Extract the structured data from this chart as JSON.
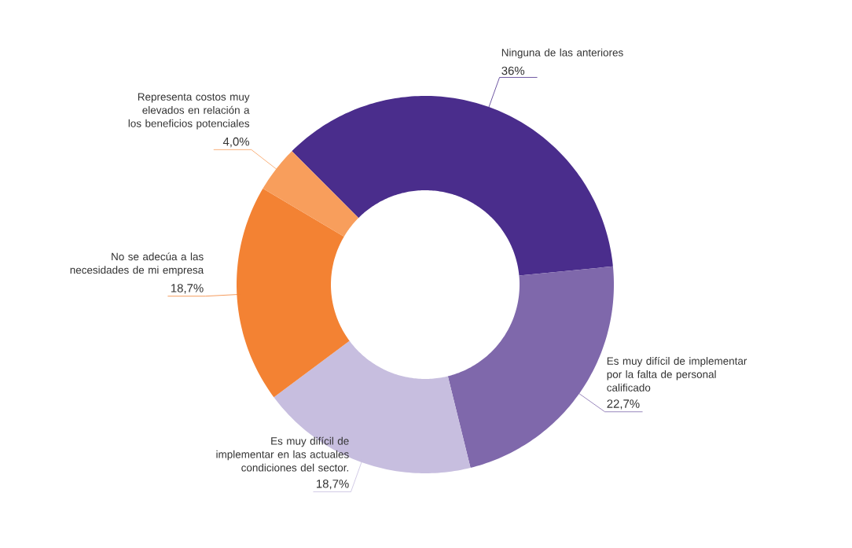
{
  "chart_data": {
    "type": "donut",
    "categories": [
      "Ninguna de las anteriores",
      "Es muy difícil de implementar por la falta de personal calificado",
      "Es muy difícil de implementar en las actuales condiciones del sector.",
      "No se adecúa a las necesidades de mi empresa",
      "Representa costos muy elevados en relación a los beneficios potenciales"
    ],
    "values": [
      36,
      22.7,
      18.7,
      18.7,
      4.0
    ],
    "value_labels": [
      "36%",
      "22,7%",
      "18,7%",
      "18,7%",
      "4,0%"
    ],
    "colors": [
      "#4a2d8c",
      "#7f68ab",
      "#c7bedf",
      "#f38233",
      "#f89e5c"
    ]
  }
}
